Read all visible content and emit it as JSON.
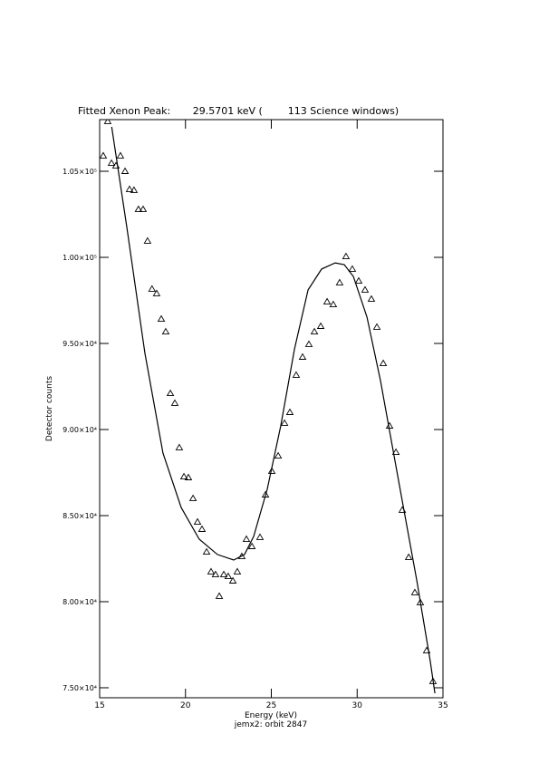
{
  "chart_data": {
    "type": "scatter",
    "title": "Fitted Xenon Peak:       29.5701 keV (        113 Science windows)",
    "xlabel": "Energy (keV)",
    "subtitle": "jemx2: orbit 2847",
    "ylabel": "Detector counts",
    "xlim": [
      15,
      35
    ],
    "xticks": [
      15,
      20,
      25,
      30,
      35
    ],
    "ylim": [
      74420,
      108000
    ],
    "yticks": [
      {
        "value": 75000,
        "label": "7.50×10⁴"
      },
      {
        "value": 80000,
        "label": "8.00×10⁴"
      },
      {
        "value": 85000,
        "label": "8.50×10⁴"
      },
      {
        "value": 90000,
        "label": "9.00×10⁴"
      },
      {
        "value": 95000,
        "label": "9.50×10⁴"
      },
      {
        "value": 100000,
        "label": "1.00×10⁵"
      },
      {
        "value": 105000,
        "label": "1.05×10⁵"
      }
    ],
    "series": [
      {
        "mode": "markers",
        "marker": "triangle",
        "color": "#000000",
        "x": [
          15.21,
          15.47,
          15.69,
          15.95,
          16.21,
          16.48,
          16.74,
          17.0,
          17.26,
          17.53,
          17.79,
          18.05,
          18.32,
          18.59,
          18.85,
          19.12,
          19.38,
          19.64,
          19.91,
          20.17,
          20.44,
          20.7,
          20.96,
          21.23,
          21.49,
          21.75,
          21.97,
          22.23,
          22.49,
          22.76,
          23.02,
          23.28,
          23.55,
          23.87,
          24.34,
          24.66,
          25.03,
          25.4,
          25.77,
          26.08,
          26.45,
          26.82,
          27.19,
          27.51,
          27.88,
          28.25,
          28.61,
          28.98,
          29.35,
          29.72,
          30.09,
          30.46,
          30.83,
          31.15,
          31.52,
          31.89,
          32.26,
          32.63,
          33.0,
          33.36,
          33.68,
          34.05,
          34.42
        ],
        "values": [
          105900,
          107900,
          105470,
          105320,
          105900,
          105000,
          103950,
          103900,
          102790,
          102790,
          100950,
          98160,
          97900,
          96420,
          95680,
          92100,
          91530,
          88950,
          87260,
          87210,
          86000,
          84630,
          84210,
          82890,
          81740,
          81580,
          80320,
          81580,
          81470,
          81210,
          81740,
          82630,
          83630,
          83210,
          83740,
          86210,
          87580,
          88470,
          90370,
          91000,
          93160,
          94210,
          94950,
          95680,
          96000,
          97420,
          97260,
          98530,
          100050,
          99320,
          98630,
          98110,
          97580,
          95950,
          93840,
          90210,
          88680,
          85320,
          82580,
          80530,
          79950,
          77160,
          75370
        ]
      },
      {
        "mode": "line",
        "color": "#000000",
        "x": [
          15.7,
          16.58,
          17.64,
          18.69,
          19.75,
          20.8,
          21.86,
          22.81,
          23.44,
          23.97,
          24.76,
          25.55,
          26.35,
          27.14,
          27.93,
          28.72,
          29.25,
          29.78,
          30.57,
          31.36,
          32.41,
          33.47,
          34.26,
          34.53
        ],
        "values": [
          107580,
          101790,
          94420,
          88630,
          85470,
          83630,
          82740,
          82420,
          82740,
          83790,
          86530,
          90210,
          94680,
          98110,
          99320,
          99680,
          99580,
          98890,
          96530,
          92840,
          87050,
          81260,
          76530,
          74680
        ]
      }
    ]
  }
}
